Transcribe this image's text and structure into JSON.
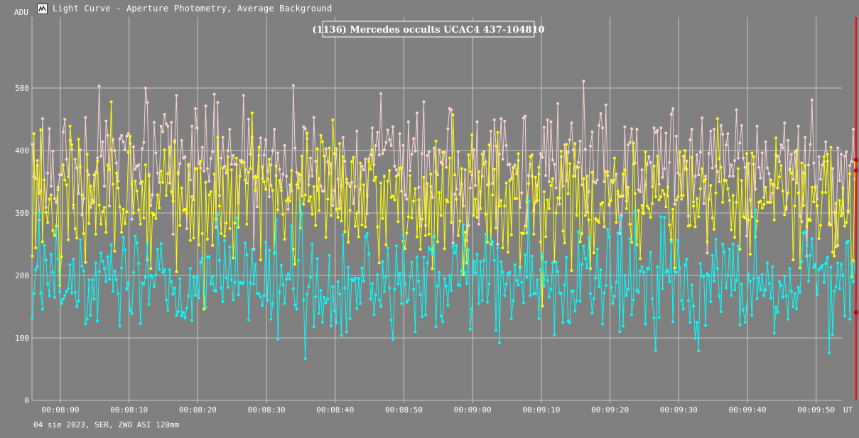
{
  "window": {
    "title": "Light Curve - Aperture Photometry, Average Background",
    "icon": "light-curve-app-icon"
  },
  "footer": {
    "info": "04 sie 2023, SER, ZWO ASI 120mm"
  },
  "colors": {
    "background": "#808080",
    "grid": "#c8c8c8",
    "target": "#fad2d2",
    "comparison": "#ffff00",
    "background_star": "#00ffff",
    "cursor": "#ff0000"
  },
  "chart_data": {
    "type": "line",
    "title": "(1136) Mercedes occults UCAC4 437-104810",
    "ylabel": "ADU",
    "xlabel": "UT",
    "ylim": [
      0,
      620
    ],
    "y_ticks": [
      0,
      100,
      200,
      300,
      400,
      500
    ],
    "x_start_seconds": 475.9,
    "x_end_seconds": 596.0,
    "x_step_seconds": 0.25,
    "x_ticks": [
      "00:08:00",
      "00:08:10",
      "00:08:20",
      "00:08:30",
      "00:08:40",
      "00:08:50",
      "00:09:00",
      "00:09:10",
      "00:09:20",
      "00:09:30",
      "00:09:40",
      "00:09:50"
    ],
    "grid": true,
    "cursor_time_seconds": 595.8,
    "series": [
      {
        "key": "target",
        "color": "#fad2d2",
        "approx_mean": 375,
        "approx_sd": 48,
        "values": []
      },
      {
        "key": "comparison",
        "color": "#ffff00",
        "approx_mean": 318,
        "approx_sd": 55,
        "values": []
      },
      {
        "key": "background_star",
        "color": "#00ffff",
        "approx_mean": 188,
        "approx_sd": 45,
        "values": []
      }
    ]
  }
}
